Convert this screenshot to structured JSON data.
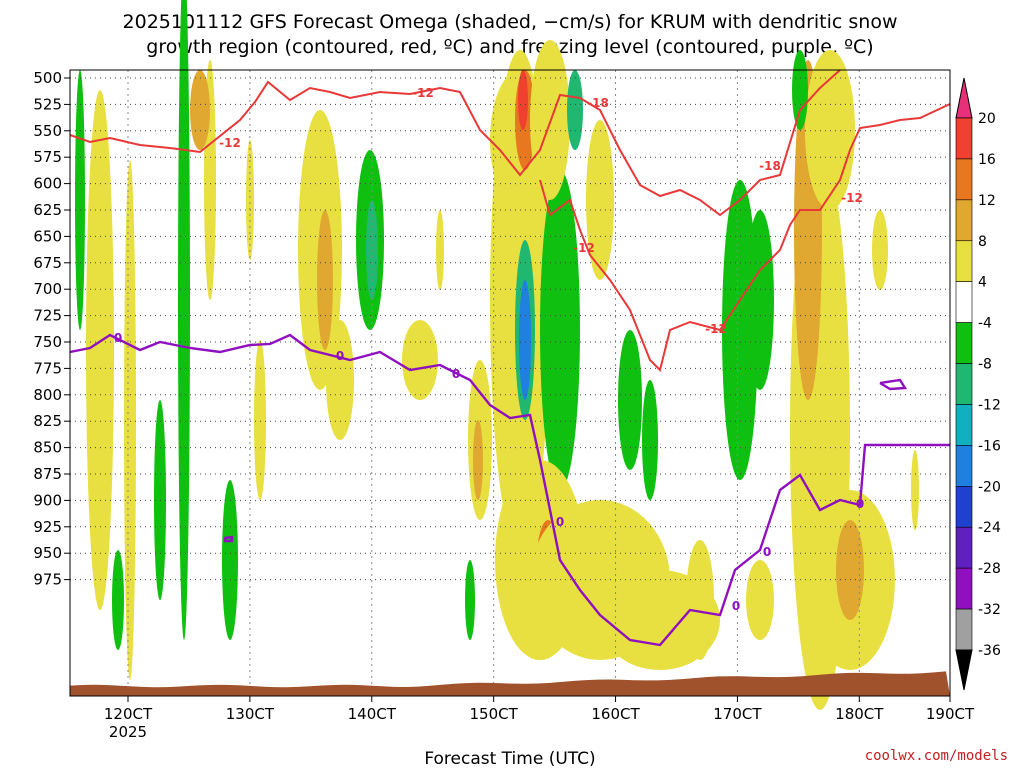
{
  "chart_data": {
    "type": "heatmap",
    "title_line1": "2025101112 GFS Forecast Omega (shaded, −cm/s) for KRUM with dendritic snow",
    "title_line2": "growth region (contoured, red, ºC) and freezing level (contoured, purple, ºC)",
    "xlabel": "Forecast Time (UTC)",
    "credit": "coolwx.com/models",
    "x_ticks": [
      "120CT",
      "130CT",
      "140CT",
      "150CT",
      "160CT",
      "170CT",
      "180CT",
      "190CT"
    ],
    "x_year": "2025",
    "y_ticks": [
      500,
      525,
      550,
      575,
      600,
      625,
      650,
      675,
      700,
      725,
      750,
      775,
      800,
      825,
      850,
      875,
      900,
      925,
      950,
      975
    ],
    "colorbar_labels": [
      20,
      16,
      12,
      8,
      4,
      -4,
      -8,
      -12,
      -16,
      -20,
      -24,
      -28,
      -32,
      -36
    ],
    "colorbar_colors": [
      "#e8307a",
      "#f04030",
      "#e87820",
      "#e0a830",
      "#e8e040",
      "#ffffff",
      "#10c010",
      "#20b870",
      "#10b0c0",
      "#2080e0",
      "#2040d0",
      "#6020c0",
      "#9010c0",
      "#a0a0a0",
      "#000000"
    ],
    "colors": {
      "dgz": "#e83838",
      "freezing": "#9010c0",
      "terrain": "#a0522d"
    },
    "contour_labels": {
      "dgz": [
        "-12",
        "-12",
        "-18",
        "-12",
        "-18",
        "-12",
        "-12"
      ],
      "freezing": [
        "0",
        "0",
        "0",
        "0",
        "0",
        "0",
        "0"
      ]
    }
  }
}
